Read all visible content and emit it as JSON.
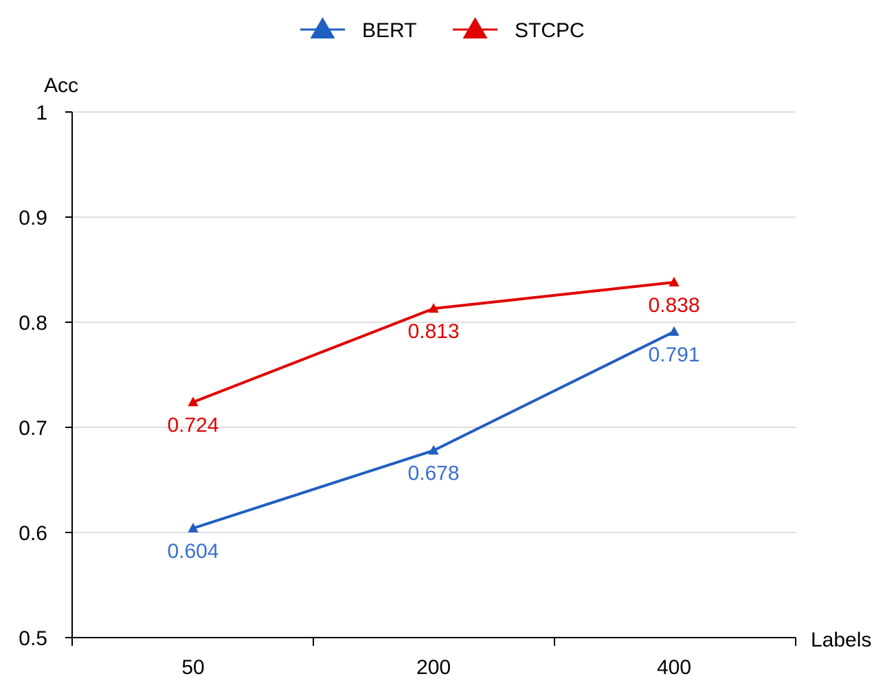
{
  "chart_data": {
    "type": "line",
    "title": "",
    "xlabel": "Labels",
    "ylabel": "Acc",
    "categories": [
      "50",
      "200",
      "400"
    ],
    "ylim": [
      0.5,
      1
    ],
    "yticks": [
      "0.5",
      "0.6",
      "0.7",
      "0.8",
      "0.9",
      "1"
    ],
    "grid": true,
    "legend_position": "top-center",
    "series": [
      {
        "name": "BERT",
        "color": "#1f5fbf",
        "label_color": "#3a6fd0",
        "marker": "triangle",
        "values": [
          0.604,
          0.678,
          0.791
        ],
        "labels": [
          "0.604",
          "0.678",
          "0.791"
        ]
      },
      {
        "name": "STCPC",
        "color": "#e00000",
        "label_color": "#e00000",
        "marker": "triangle",
        "values": [
          0.724,
          0.813,
          0.838
        ],
        "labels": [
          "0.724",
          "0.813",
          "0.838"
        ]
      }
    ]
  }
}
